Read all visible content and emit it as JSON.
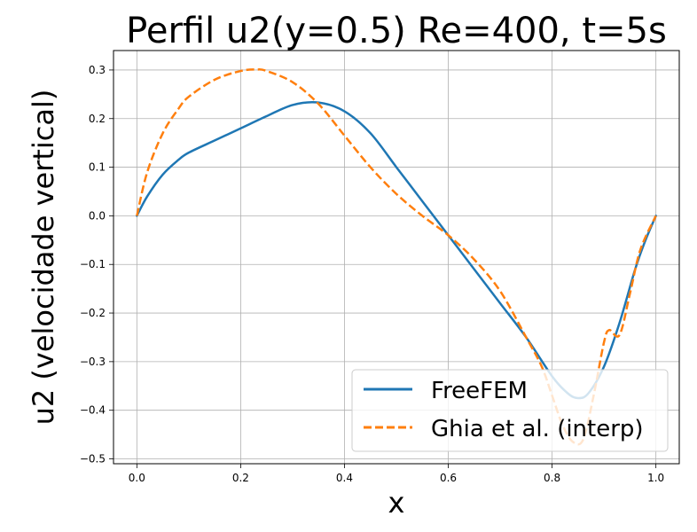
{
  "chart_data": {
    "type": "line",
    "title": "Perfil u2(y=0.5) Re=400, t=5s",
    "xlabel": "x",
    "ylabel": "u2 (velocidade vertical)",
    "xlim": [
      -0.045,
      1.045
    ],
    "ylim": [
      -0.51,
      0.34
    ],
    "xticks": [
      0.0,
      0.2,
      0.4,
      0.6,
      0.8,
      1.0
    ],
    "xtick_labels": [
      "0.0",
      "0.2",
      "0.4",
      "0.6",
      "0.8",
      "1.0"
    ],
    "yticks": [
      -0.5,
      -0.4,
      -0.3,
      -0.2,
      -0.1,
      0.0,
      0.1,
      0.2,
      0.3
    ],
    "ytick_labels": [
      "−0.5",
      "−0.4",
      "−0.3",
      "−0.2",
      "−0.1",
      "0.0",
      "0.1",
      "0.2",
      "0.3"
    ],
    "grid": true,
    "legend_position": "lower-right",
    "series": [
      {
        "name": "FreeFEM",
        "color": "#1f77b4",
        "style": "solid",
        "x": [
          0.0,
          0.02,
          0.05,
          0.08,
          0.1,
          0.15,
          0.2,
          0.25,
          0.3,
          0.35,
          0.4,
          0.45,
          0.5,
          0.55,
          0.6,
          0.65,
          0.7,
          0.75,
          0.8,
          0.83,
          0.85,
          0.87,
          0.9,
          0.93,
          0.96,
          0.98,
          1.0
        ],
        "y": [
          0.0,
          0.04,
          0.085,
          0.115,
          0.13,
          0.155,
          0.18,
          0.205,
          0.228,
          0.233,
          0.215,
          0.17,
          0.1,
          0.03,
          -0.04,
          -0.11,
          -0.18,
          -0.25,
          -0.33,
          -0.365,
          -0.375,
          -0.365,
          -0.31,
          -0.22,
          -0.11,
          -0.05,
          0.0
        ]
      },
      {
        "name": "Ghia et al. (interp)",
        "color": "#ff7f0e",
        "style": "dashed",
        "x": [
          0.0,
          0.02,
          0.05,
          0.08,
          0.1,
          0.15,
          0.2,
          0.23,
          0.25,
          0.3,
          0.35,
          0.4,
          0.45,
          0.5,
          0.55,
          0.6,
          0.65,
          0.7,
          0.75,
          0.78,
          0.8,
          0.82,
          0.84,
          0.86,
          0.88,
          0.9,
          0.91,
          0.93,
          0.95,
          0.97,
          1.0
        ],
        "y": [
          0.0,
          0.09,
          0.17,
          0.22,
          0.245,
          0.28,
          0.298,
          0.301,
          0.298,
          0.275,
          0.23,
          0.165,
          0.1,
          0.045,
          0.0,
          -0.04,
          -0.09,
          -0.155,
          -0.25,
          -0.31,
          -0.37,
          -0.43,
          -0.465,
          -0.46,
          -0.37,
          -0.26,
          -0.235,
          -0.245,
          -0.16,
          -0.07,
          0.0
        ]
      }
    ]
  }
}
